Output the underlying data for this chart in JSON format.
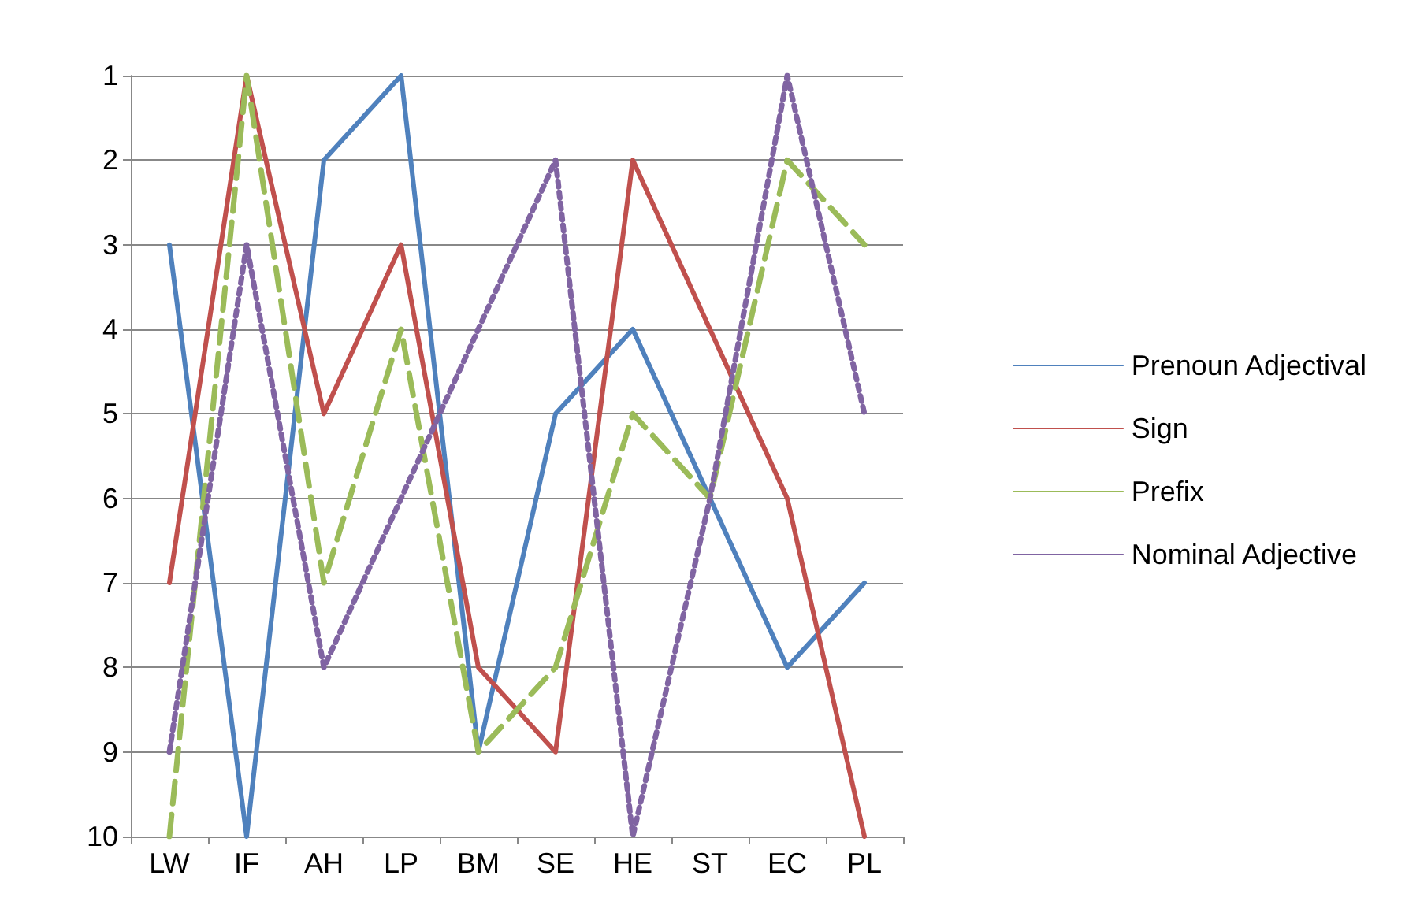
{
  "chart_data": {
    "type": "line",
    "categories": [
      "LW",
      "IF",
      "AH",
      "LP",
      "BM",
      "SE",
      "HE",
      "ST",
      "EC",
      "PL"
    ],
    "series": [
      {
        "name": "Prenoun Adjectival",
        "color": "#4f81bd",
        "line_style": "solid",
        "values": [
          3,
          10,
          2,
          1,
          9,
          5,
          4,
          6,
          8,
          7
        ]
      },
      {
        "name": "Sign",
        "color": "#c0504d",
        "line_style": "solid",
        "values": [
          7,
          1,
          5,
          3,
          8,
          9,
          2,
          4,
          6,
          10
        ]
      },
      {
        "name": "Prefix",
        "color": "#9bbb59",
        "line_style": "dashed",
        "values": [
          10,
          1,
          7,
          4,
          9,
          8,
          5,
          6,
          2,
          3
        ]
      },
      {
        "name": "Nominal Adjective",
        "color": "#8064a2",
        "line_style": "dotted",
        "values": [
          9,
          3,
          8,
          6,
          4,
          2,
          10,
          6,
          1,
          5
        ]
      }
    ],
    "ylim": [
      10,
      1
    ],
    "yticks": [
      1,
      2,
      3,
      4,
      5,
      6,
      7,
      8,
      9,
      10
    ],
    "grid": "y",
    "legend": "right",
    "marker": "none"
  }
}
